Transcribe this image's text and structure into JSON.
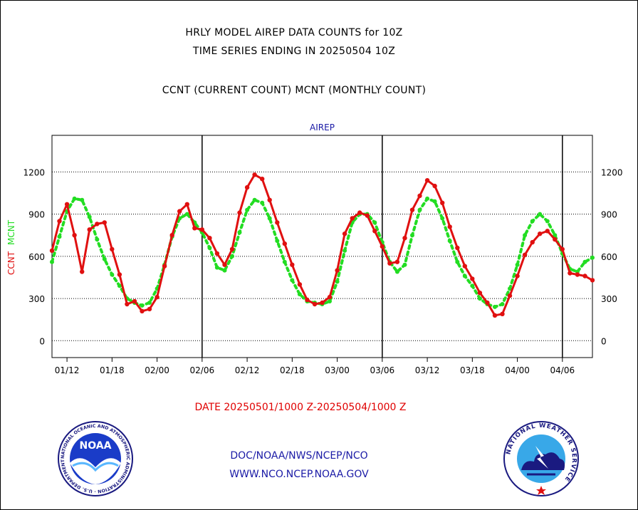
{
  "header": {
    "line1": "HRLY MODEL AIREP DATA COUNTS for 10Z",
    "line2": "TIME SERIES ENDING IN 20250504 10Z",
    "line3": "CCNT (CURRENT COUNT) MCNT (MONTHLY COUNT)"
  },
  "footer": {
    "date_range": "DATE 20250501/1000 Z-20250504/1000 Z",
    "org": "DOC/NOAA/NWS/NCEP/NCO",
    "url": "WWW.NCO.NCEP.NOAA.GOV"
  },
  "logos": {
    "noaa_text": "NOAA",
    "noaa_ring": "NATIONAL OCEANIC AND ATMOSPHERIC ADMINISTRATION · U.S. DEPARTMENT OF COMMERCE",
    "nws_ring": "NATIONAL WEATHER SERVICE"
  },
  "colors": {
    "ccnt": "#e01010",
    "mcnt": "#22dd22",
    "title_blue": "#1a1aa6"
  },
  "chart_data": {
    "type": "line",
    "title": "AIREP",
    "ylabel_left_1": "CCNT",
    "ylabel_left_2": "MCNT",
    "ylim": [
      -120,
      1460
    ],
    "yticks": [
      0,
      300,
      600,
      900,
      1200
    ],
    "x_tick_labels": [
      "01/12",
      "01/18",
      "02/00",
      "02/06",
      "02/12",
      "02/18",
      "03/00",
      "03/06",
      "03/12",
      "03/18",
      "04/00",
      "04/06"
    ],
    "day_boundaries_after_hours": [
      20,
      44,
      68
    ],
    "x_hours": [
      0,
      1,
      2,
      3,
      4,
      5,
      6,
      7,
      8,
      9,
      10,
      11,
      12,
      13,
      14,
      15,
      16,
      17,
      18,
      19,
      20,
      21,
      22,
      23,
      24,
      25,
      26,
      27,
      28,
      29,
      30,
      31,
      32,
      33,
      34,
      35,
      36,
      37,
      38,
      39,
      40,
      41,
      42,
      43,
      44,
      45,
      46,
      47,
      48,
      49,
      50,
      51,
      52,
      53,
      54,
      55,
      56,
      57,
      58,
      59,
      60,
      61,
      62,
      63,
      64,
      65,
      66,
      67,
      68,
      69,
      70,
      71,
      72
    ],
    "series": [
      {
        "name": "CCNT",
        "values": [
          640,
          850,
          970,
          750,
          490,
          790,
          830,
          840,
          650,
          470,
          260,
          280,
          210,
          225,
          310,
          530,
          750,
          920,
          970,
          800,
          790,
          730,
          620,
          540,
          650,
          910,
          1090,
          1180,
          1150,
          1000,
          840,
          690,
          540,
          400,
          290,
          260,
          270,
          310,
          500,
          760,
          870,
          910,
          890,
          780,
          670,
          550,
          560,
          730,
          930,
          1030,
          1140,
          1100,
          980,
          810,
          660,
          530,
          440,
          340,
          270,
          180,
          190,
          320,
          460,
          610,
          700,
          760,
          780,
          720,
          650,
          480,
          470,
          460,
          430
        ]
      },
      {
        "name": "MCNT",
        "values": [
          560,
          740,
          920,
          1010,
          1000,
          880,
          720,
          580,
          470,
          390,
          300,
          270,
          250,
          270,
          370,
          540,
          740,
          870,
          900,
          840,
          770,
          660,
          520,
          500,
          600,
          770,
          930,
          1000,
          980,
          870,
          710,
          560,
          430,
          330,
          280,
          270,
          260,
          280,
          420,
          640,
          840,
          900,
          900,
          840,
          700,
          560,
          490,
          540,
          750,
          930,
          1010,
          990,
          870,
          710,
          560,
          460,
          390,
          300,
          260,
          240,
          260,
          370,
          540,
          750,
          850,
          900,
          850,
          750,
          620,
          510,
          490,
          560,
          590
        ]
      }
    ]
  }
}
